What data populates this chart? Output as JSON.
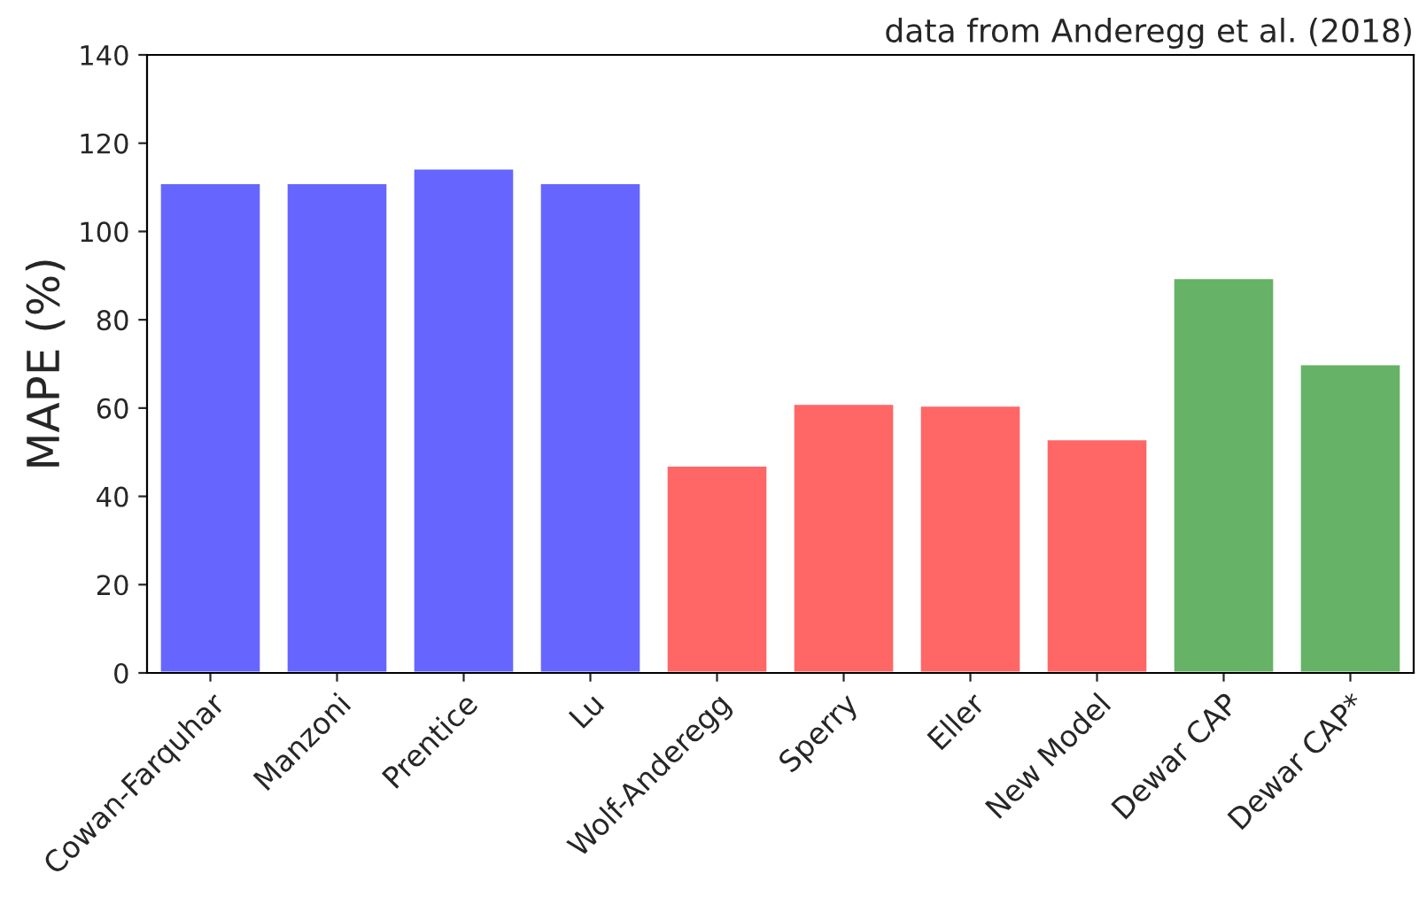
{
  "chart_data": {
    "type": "bar",
    "ylabel": "MAPE (%)",
    "annotations": [
      "data from Anderegg et al. (2018)"
    ],
    "categories": [
      "Cowan-Farquhar",
      "Manzoni",
      "Prentice",
      "Lu",
      "Wolf-Anderegg",
      "Sperry",
      "Eller",
      "New Model",
      "Dewar CAP",
      "Dewar CAP*"
    ],
    "values": [
      111,
      111,
      114.3,
      111,
      47,
      61,
      60.6,
      53,
      89.5,
      70
    ],
    "colors": [
      "#6666ff",
      "#6666ff",
      "#6666ff",
      "#6666ff",
      "#ff6666",
      "#ff6666",
      "#ff6666",
      "#ff6666",
      "#66b266",
      "#66b266"
    ],
    "ylim": [
      0,
      140
    ],
    "yticks": [
      0,
      20,
      40,
      60,
      80,
      100,
      120,
      140
    ],
    "grid": false
  }
}
